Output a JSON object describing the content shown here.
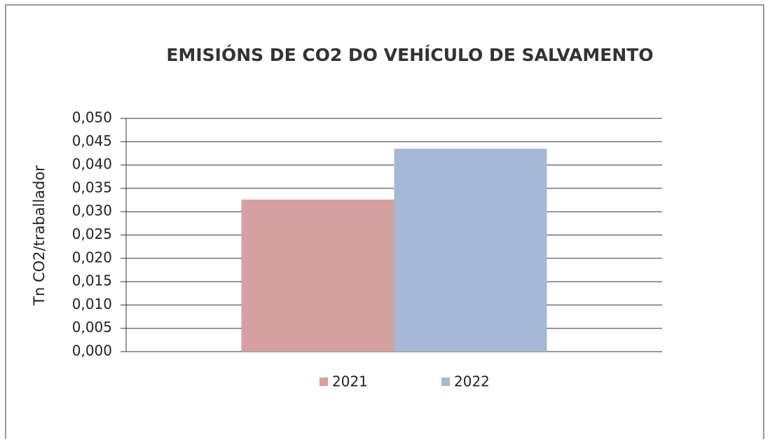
{
  "chart_data": {
    "type": "bar",
    "title": "EMISIÓNS DE CO2 DO VEHÍCULO DE SALVAMENTO",
    "y_label": "Tn CO2/traballador",
    "categories": [
      null
    ],
    "series": [
      {
        "name": "2021",
        "color": "#d5a0a0",
        "values": [
          0.0326
        ]
      },
      {
        "name": "2022",
        "color": "#a5b9d6",
        "values": [
          0.0435
        ]
      }
    ],
    "ylim": [
      0,
      0.05
    ],
    "yticks": [
      {
        "value": 0,
        "label": "0,000"
      },
      {
        "value": 0.005,
        "label": "0,005"
      },
      {
        "value": 0.01,
        "label": "0,010"
      },
      {
        "value": 0.015,
        "label": "0,015"
      },
      {
        "value": 0.02,
        "label": "0,020"
      },
      {
        "value": 0.025,
        "label": "0,025"
      },
      {
        "value": 0.03,
        "label": "0,030"
      },
      {
        "value": 0.035,
        "label": "0,035"
      },
      {
        "value": 0.04,
        "label": "0,040"
      },
      {
        "value": 0.045,
        "label": "0,045"
      },
      {
        "value": 0.05,
        "label": "0,050"
      }
    ],
    "grid": true
  }
}
